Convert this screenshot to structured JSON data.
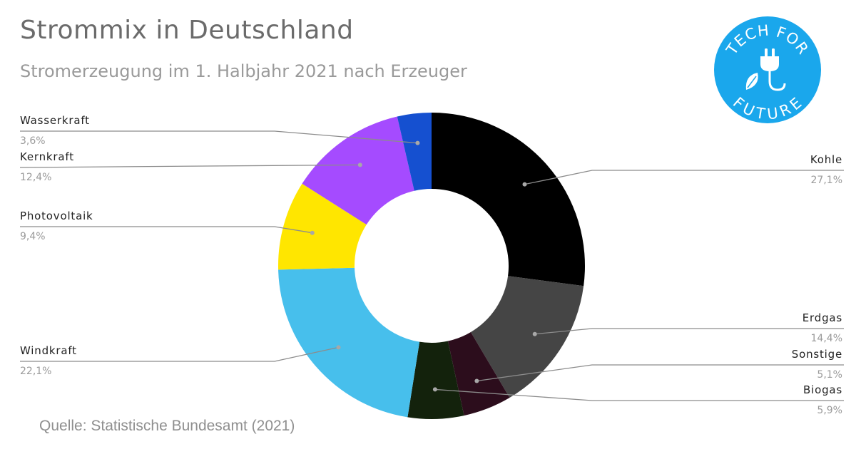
{
  "header": {
    "title": "Strommix in Deutschland",
    "subtitle": "Stromerzeugung im 1. Halbjahr 2021 nach Erzeuger"
  },
  "source": "Quelle: Statistische Bundesamt (2021)",
  "logo": {
    "text_top": "TECH FOR",
    "text_bottom": "FUTURE",
    "color": "#1aa7ec",
    "icon": "plug-leaf-icon"
  },
  "chart_data": {
    "type": "pie",
    "variant": "donut",
    "title": "Strommix in Deutschland",
    "subtitle": "Stromerzeugung im 1. Halbjahr 2021 nach Erzeuger",
    "unit": "%",
    "slices": [
      {
        "label": "Kohle",
        "value": 27.1,
        "value_label": "27,1%",
        "color": "#000000",
        "side": "right"
      },
      {
        "label": "Erdgas",
        "value": 14.4,
        "value_label": "14,4%",
        "color": "#454545",
        "side": "right"
      },
      {
        "label": "Sonstige",
        "value": 5.1,
        "value_label": "5,1%",
        "color": "#2c0d1c",
        "side": "right"
      },
      {
        "label": "Biogas",
        "value": 5.9,
        "value_label": "5,9%",
        "color": "#13220c",
        "side": "right"
      },
      {
        "label": "Windkraft",
        "value": 22.1,
        "value_label": "22,1%",
        "color": "#47bfec",
        "side": "left"
      },
      {
        "label": "Photovoltaik",
        "value": 9.4,
        "value_label": "9,4%",
        "color": "#ffe600",
        "side": "left"
      },
      {
        "label": "Kernkraft",
        "value": 12.4,
        "value_label": "12,4%",
        "color": "#a54bff",
        "side": "left"
      },
      {
        "label": "Wasserkraft",
        "value": 3.6,
        "value_label": "3,6%",
        "color": "#1550d0",
        "side": "left"
      }
    ]
  }
}
